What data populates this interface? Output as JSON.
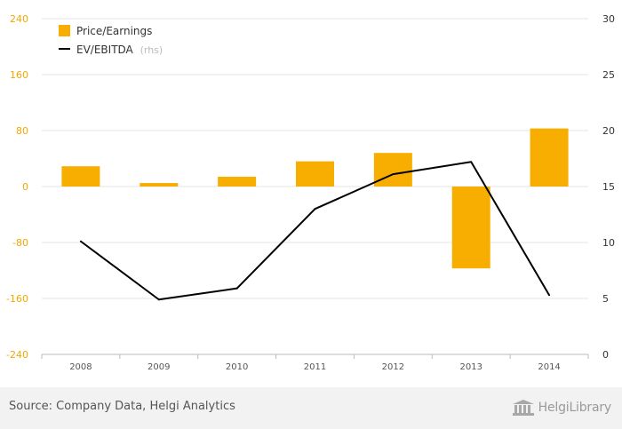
{
  "chart_data": {
    "type": "bar+line",
    "categories": [
      "2008",
      "2009",
      "2010",
      "2011",
      "2012",
      "2013",
      "2014"
    ],
    "series": [
      {
        "name": "Price/Earnings",
        "type": "bar",
        "axis": "left",
        "color": "#f7ae00",
        "values": [
          29,
          5,
          14,
          36,
          48,
          -117,
          83
        ]
      },
      {
        "name": "EV/EBITDA",
        "type": "line",
        "axis": "right",
        "color": "#000000",
        "values": [
          10.1,
          4.9,
          5.9,
          13.0,
          16.1,
          17.2,
          5.3
        ]
      }
    ],
    "left_axis": {
      "ylim": [
        -240,
        240
      ],
      "ticks": [
        "240",
        "160",
        "80",
        "0",
        "-80",
        "-160",
        "-240"
      ],
      "tick_values": [
        240,
        160,
        80,
        0,
        -80,
        -160,
        -240
      ]
    },
    "right_axis": {
      "ylim": [
        0,
        30
      ],
      "ticks": [
        "30",
        "25",
        "20",
        "15",
        "10",
        "5",
        "0"
      ],
      "tick_values": [
        30,
        25,
        20,
        15,
        10,
        5,
        0
      ]
    },
    "legend": {
      "placement": "top-left",
      "items": [
        {
          "label": "Price/Earnings",
          "note": ""
        },
        {
          "label": "EV/EBITDA",
          "note": "(rhs)"
        }
      ]
    },
    "grid": true
  },
  "footer": {
    "source": "Source: Company Data, Helgi Analytics",
    "logo_text": "HelgiLibrary"
  },
  "colors": {
    "bar": "#f7ae00",
    "line": "#000000",
    "left_ticks": "#f0a800",
    "grid": "#e6e6e6"
  }
}
